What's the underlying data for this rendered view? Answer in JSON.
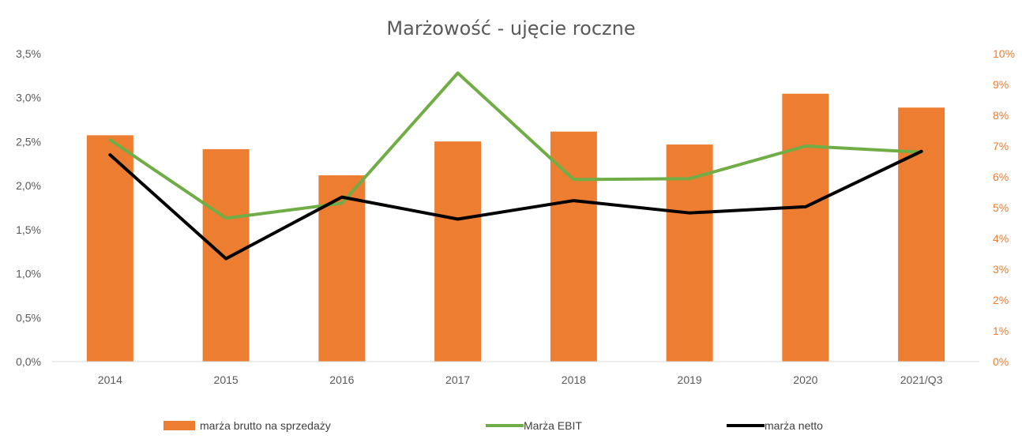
{
  "chart_data": {
    "type": "bar",
    "title": "Marżowość - ujęcie roczne",
    "categories": [
      "2014",
      "2015",
      "2016",
      "2017",
      "2018",
      "2019",
      "2020",
      "2021/Q3"
    ],
    "y_left": {
      "ylim": [
        0,
        3.5
      ],
      "ticks": [
        "0,0%",
        "0,5%",
        "1,0%",
        "1,5%",
        "2,0%",
        "2,5%",
        "3,0%",
        "3,5%"
      ],
      "tick_values": [
        0,
        0.5,
        1.0,
        1.5,
        2.0,
        2.5,
        3.0,
        3.5
      ]
    },
    "y_right": {
      "ylim": [
        0,
        10
      ],
      "ticks": [
        "0%",
        "1%",
        "2%",
        "3%",
        "4%",
        "5%",
        "6%",
        "7%",
        "8%",
        "9%",
        "10%"
      ],
      "tick_values": [
        0,
        1,
        2,
        3,
        4,
        5,
        6,
        7,
        8,
        9,
        10
      ],
      "color": "#ed7d31"
    },
    "series": [
      {
        "name": "marża brutto na sprzedaży",
        "kind": "bar",
        "axis": "right",
        "color": "#ed7d31",
        "values": [
          7.35,
          6.9,
          6.05,
          7.15,
          7.47,
          7.05,
          8.7,
          8.25
        ]
      },
      {
        "name": "Marża EBIT",
        "kind": "line",
        "axis": "left",
        "color": "#70ad47",
        "values": [
          2.52,
          1.63,
          1.8,
          3.28,
          2.07,
          2.08,
          2.45,
          2.38
        ]
      },
      {
        "name": "marża netto",
        "kind": "line",
        "axis": "left",
        "color": "#000000",
        "values": [
          2.35,
          1.17,
          1.87,
          1.62,
          1.83,
          1.69,
          1.76,
          2.39
        ]
      }
    ],
    "legend_position": "bottom",
    "grid": false
  }
}
